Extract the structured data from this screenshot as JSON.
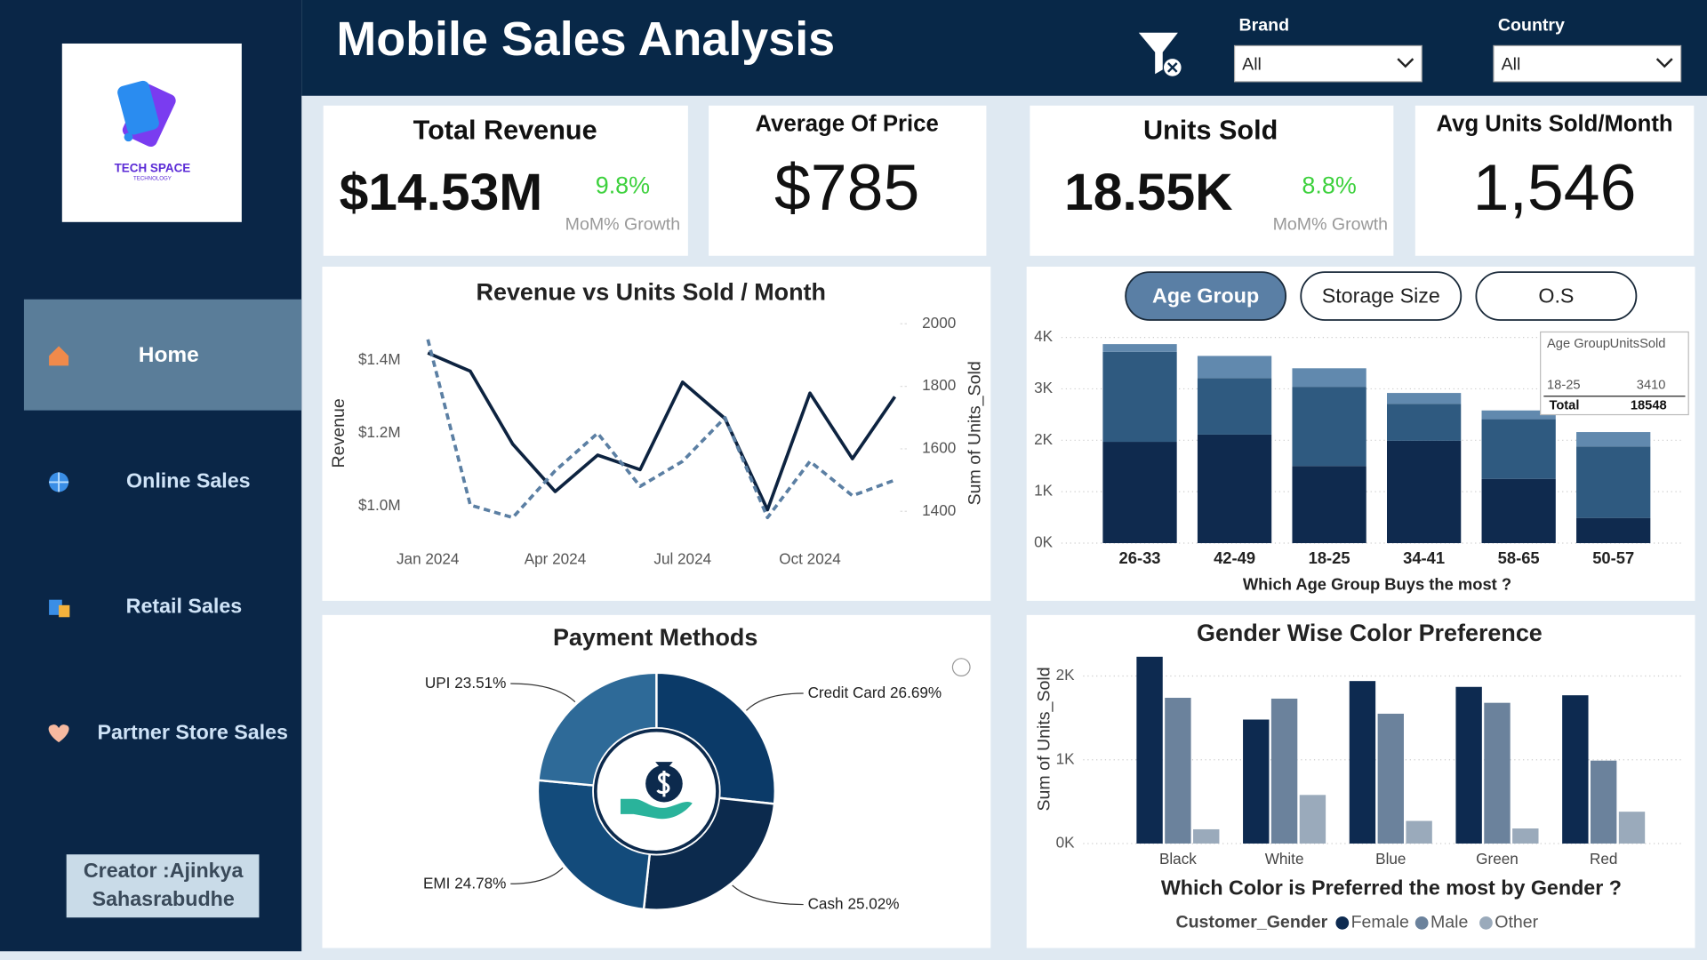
{
  "header": {
    "title": "Mobile Sales Analysis",
    "filters": [
      {
        "label": "Brand",
        "value": "All"
      },
      {
        "label": "Country",
        "value": "All"
      }
    ]
  },
  "sidebar": {
    "logo": [
      "TECH SPACE",
      "TECHNOLOGY"
    ],
    "nav": [
      "Home",
      "Online Sales",
      "Retail Sales",
      "Partner Store Sales"
    ],
    "creator": [
      "Creator :Ajinkya",
      "Sahasrabudhe"
    ]
  },
  "kpis": [
    {
      "title": "Total Revenue",
      "value": "$14.53M",
      "growth": "9.8%",
      "growth_label": "MoM% Growth"
    },
    {
      "title": "Average Of Price",
      "value": "$785"
    },
    {
      "title": "Units Sold",
      "value": "18.55K",
      "growth": "8.8%",
      "growth_label": "MoM% Growth"
    },
    {
      "title": "Avg Units Sold/Month",
      "value": "1,546"
    }
  ],
  "chart_data": [
    {
      "type": "line",
      "title": "Revenue vs Units Sold / Month",
      "y_label": "Revenue",
      "y2_label": "Sum of Units_Sold",
      "categories": [
        "Jan 2024",
        null,
        null,
        "Apr 2024",
        null,
        null,
        "Jul 2024",
        null,
        null,
        "Oct 2024",
        null,
        null
      ],
      "series": [
        {
          "color": "#0d2340",
          "values": [
            1420000,
            1370000,
            1170000,
            1040000,
            1140000,
            1100000,
            1340000,
            1240000,
            990000,
            1310000,
            1130000,
            1300000
          ]
        },
        {
          "color": "#5b7fa3",
          "dashed": true,
          "axis": "y2",
          "values": [
            1950,
            1420,
            1380,
            1530,
            1650,
            1480,
            1560,
            1700,
            1380,
            1560,
            1450,
            1500
          ]
        }
      ],
      "ylim": [
        900000,
        1500000
      ],
      "yticks": [
        {
          "value": 1000000,
          "label": "$1.0M"
        },
        {
          "value": 1200000,
          "label": "$1.2M"
        },
        {
          "value": 1400000,
          "label": "$1.4M"
        }
      ],
      "y2lim": [
        1300,
        2000
      ],
      "y2ticks": [
        1400,
        1600,
        1800,
        2000
      ]
    },
    {
      "type": "bar",
      "stacked": true,
      "buttons": [
        "Age Group",
        "Storage Size",
        "O.S"
      ],
      "x_label": "Which Age Group Buys the most ?",
      "categories": [
        "26-33",
        "42-49",
        "18-25",
        "34-41",
        "58-65",
        "50-57"
      ],
      "series": [
        {
          "color": "#0f2a4e",
          "values": [
            1970,
            2110,
            1500,
            1990,
            1250,
            490
          ]
        },
        {
          "color": "#2f5a80",
          "values": [
            1750,
            1100,
            1540,
            720,
            1160,
            1390
          ]
        },
        {
          "color": "#6189ae",
          "values": [
            150,
            430,
            360,
            210,
            170,
            280
          ]
        }
      ],
      "ylim": [
        0,
        4000
      ],
      "yticks": [
        {
          "value": 0,
          "label": "0K"
        },
        {
          "value": 1000,
          "label": "1K"
        },
        {
          "value": 2000,
          "label": "2K"
        },
        {
          "value": 3000,
          "label": "3K"
        },
        {
          "value": 4000,
          "label": "4K"
        }
      ],
      "grid": true,
      "tooltip": {
        "headers": [
          "Age Group",
          "UnitsSold"
        ],
        "row": [
          "18-25",
          3410
        ],
        "total": [
          "Total",
          18548
        ]
      }
    },
    {
      "type": "pie",
      "donut": true,
      "title": "Payment Methods",
      "categories": [
        "Credit Card",
        "Cash",
        "EMI",
        "UPI"
      ],
      "values": [
        26.69,
        25.02,
        24.78,
        23.51
      ],
      "value_labels": [
        "26.69%",
        "25.02%",
        "24.78%",
        "23.51%"
      ],
      "colors": [
        "#0b3a68",
        "#0c2a4d",
        "#134b7b",
        "#2e6a98"
      ]
    },
    {
      "type": "bar",
      "title": "Gender Wise Color Preference",
      "y_label": "Sum of Units_Sold",
      "x_label": "Which Color is Preferred the most by Gender ?",
      "legend_title": "Customer_Gender",
      "categories": [
        "Black",
        "White",
        "Blue",
        "Green",
        "Red"
      ],
      "series": [
        {
          "name": "Female",
          "color": "#0d2a50",
          "values": [
            2230,
            1480,
            1940,
            1870,
            1770
          ]
        },
        {
          "name": "Male",
          "color": "#6b829c",
          "values": [
            1740,
            1730,
            1550,
            1680,
            990
          ]
        },
        {
          "name": "Other",
          "color": "#9aaabb",
          "values": [
            170,
            580,
            270,
            180,
            380
          ]
        }
      ],
      "ylim": [
        0,
        2300
      ],
      "yticks": [
        {
          "value": 0,
          "label": "0K"
        },
        {
          "value": 1000,
          "label": "1K"
        },
        {
          "value": 2000,
          "label": "2K"
        }
      ],
      "grid": true
    }
  ]
}
